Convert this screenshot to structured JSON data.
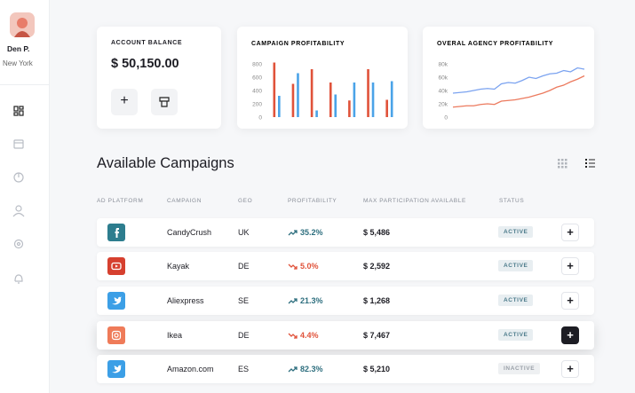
{
  "user": {
    "name": "Den P.",
    "location": "New York"
  },
  "balance": {
    "title": "ACCOUNT BALANCE",
    "amount": "$ 50,150.00"
  },
  "chart_data": [
    {
      "type": "bar",
      "title": "CAMPAIGN PROFITABILITY",
      "categories": [
        null,
        null,
        null,
        null,
        null,
        null,
        null
      ],
      "series": [
        {
          "color": "#e0523a",
          "values": [
            820,
            500,
            720,
            520,
            250,
            720,
            260
          ]
        },
        {
          "color": "#4aa3e8",
          "values": [
            320,
            660,
            100,
            340,
            520,
            520,
            540
          ]
        }
      ],
      "ylim": [
        0,
        800
      ],
      "yticks": [
        0,
        200,
        400,
        600,
        800
      ]
    },
    {
      "type": "line",
      "title": "OVERAL AGENCY PROFITABILITY",
      "categories": [
        null,
        null,
        null,
        null,
        null,
        null,
        null,
        null,
        null,
        null,
        null,
        null,
        null,
        null,
        null,
        null,
        null,
        null,
        null,
        null
      ],
      "series": [
        {
          "color": "#7ba3f0",
          "values": [
            36000,
            37000,
            38000,
            40000,
            42000,
            43000,
            42000,
            50000,
            52000,
            51000,
            55000,
            60000,
            58000,
            62000,
            65000,
            66000,
            70000,
            68000,
            74000,
            72000
          ]
        },
        {
          "color": "#ec7a5e",
          "values": [
            15000,
            16000,
            17000,
            17000,
            19000,
            20000,
            19000,
            24000,
            25000,
            26000,
            28000,
            30000,
            33000,
            36000,
            40000,
            45000,
            48000,
            53000,
            57000,
            62000
          ]
        }
      ],
      "ylim": [
        0,
        80000
      ],
      "yticks": [
        0,
        {
          "value": 20000,
          "label": "20k"
        },
        {
          "value": 40000,
          "label": "40k"
        },
        {
          "value": 60000,
          "label": "60k"
        },
        {
          "value": 80000,
          "label": "80k"
        }
      ]
    }
  ],
  "campaigns": {
    "title": "Available Campaigns",
    "columns": [
      "AD PLATFORM",
      "CAMPAIGN",
      "GEO",
      "PROFITABILITY",
      "MAX PARTICIPATION AVAILABLE",
      "STATUS"
    ],
    "rows": [
      [
        "CandyCrush",
        "UK",
        "35.2%",
        "$ 5,486",
        "ACTIVE"
      ],
      [
        "Kayak",
        "DE",
        "5.0%",
        "$ 2,592",
        "ACTIVE"
      ],
      [
        "Aliexpress",
        "SE",
        "21.3%",
        "$ 1,268",
        "ACTIVE"
      ],
      [
        "Ikea",
        "DE",
        "4.4%",
        "$ 7,467",
        "ACTIVE"
      ],
      [
        "Amazon.com",
        "ES",
        "82.3%",
        "$ 5,210",
        "INACTIVE"
      ]
    ]
  }
}
